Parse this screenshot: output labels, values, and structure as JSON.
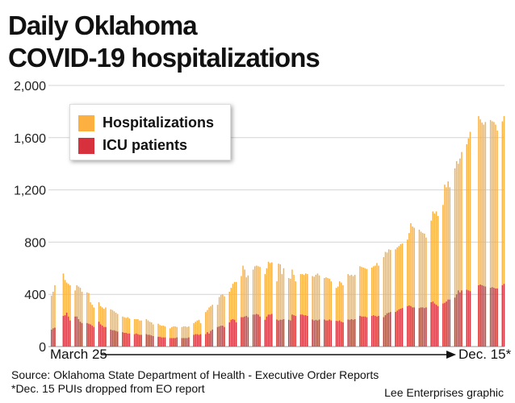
{
  "title_line1": "Daily Oklahoma",
  "title_line2": "COVID-19 hospitalizations",
  "source": "Source: Oklahoma State Department of Health - Executive Order Reports",
  "footnote": "*Dec. 15 PUIs dropped from EO report",
  "credit": "Lee Enterprises graphic",
  "chart_data": {
    "type": "bar",
    "title": "Daily Oklahoma COVID-19 hospitalizations",
    "x_start_label": "March 25",
    "x_end_label": "Dec. 15*",
    "ylim": [
      0,
      2000
    ],
    "y_ticks": [
      0,
      400,
      800,
      1200,
      1600,
      2000
    ],
    "y_tick_labels": [
      "0",
      "400",
      "800",
      "1,200",
      "1,600",
      "2,000"
    ],
    "grid": true,
    "legend_placement": "top-left",
    "overlay": true,
    "colors": {
      "Hospitalizations": "#FBB040",
      "ICU patients": "#D7313E"
    },
    "series_names": [
      "Hospitalizations",
      "ICU patients"
    ],
    "weekly_groups": [
      {
        "hosp": [
          390,
          420,
          470
        ],
        "icu": [
          130,
          140,
          145
        ]
      },
      {
        "hosp": [
          560,
          510,
          490,
          480,
          470
        ],
        "icu": [
          235,
          240,
          260,
          230,
          200
        ]
      },
      {
        "hosp": [
          430,
          470,
          460,
          450,
          420
        ],
        "icu": [
          230,
          230,
          210,
          190,
          180
        ]
      },
      {
        "hosp": [
          415,
          410,
          340,
          320,
          300
        ],
        "icu": [
          180,
          175,
          170,
          160,
          150
        ]
      },
      {
        "hosp": [
          340,
          310,
          300,
          290,
          300
        ],
        "icu": [
          190,
          170,
          160,
          150,
          150
        ]
      },
      {
        "hosp": [
          285,
          280,
          270,
          260,
          250
        ],
        "icu": [
          130,
          125,
          125,
          120,
          115
        ]
      },
      {
        "hosp": [
          230,
          225,
          220,
          225,
          215
        ],
        "icu": [
          110,
          105,
          105,
          100,
          100
        ]
      },
      {
        "hosp": [
          210,
          210,
          210,
          200,
          200
        ],
        "icu": [
          95,
          100,
          95,
          90,
          90
        ]
      },
      {
        "hosp": [
          210,
          200,
          190,
          185,
          170
        ],
        "icu": [
          95,
          90,
          90,
          85,
          80
        ]
      },
      {
        "hosp": [
          175,
          165,
          160,
          160,
          155
        ],
        "icu": [
          75,
          75,
          70,
          70,
          70
        ]
      },
      {
        "hosp": [
          140,
          150,
          155,
          155,
          150
        ],
        "icu": [
          65,
          65,
          65,
          65,
          70
        ]
      },
      {
        "hosp": [
          150,
          155,
          155,
          150,
          155
        ],
        "icu": [
          65,
          65,
          65,
          65,
          70
        ]
      },
      {
        "hosp": [
          180,
          190,
          200,
          205,
          180
        ],
        "icu": [
          90,
          95,
          95,
          90,
          95
        ]
      },
      {
        "hosp": [
          265,
          280,
          300,
          310,
          320
        ],
        "icu": [
          95,
          110,
          100,
          120,
          130
        ]
      },
      {
        "hosp": [
          320,
          380,
          395,
          400,
          385
        ],
        "icu": [
          150,
          155,
          160,
          160,
          150
        ]
      },
      {
        "hosp": [
          420,
          450,
          480,
          495,
          495
        ],
        "icu": [
          185,
          205,
          210,
          205,
          185
        ]
      },
      {
        "hosp": [
          540,
          620,
          590,
          530,
          545
        ],
        "icu": [
          225,
          225,
          230,
          235,
          225
        ]
      },
      {
        "hosp": [
          590,
          615,
          620,
          615,
          610
        ],
        "icu": [
          245,
          245,
          250,
          245,
          230
        ]
      },
      {
        "hosp": [
          555,
          600,
          650,
          640,
          645
        ],
        "icu": [
          205,
          230,
          245,
          245,
          250
        ]
      },
      {
        "hosp": [
          500,
          635,
          630,
          555,
          600
        ],
        "icu": [
          207,
          200,
          205,
          205,
          210
        ]
      },
      {
        "hosp": [
          525,
          520,
          590,
          550,
          500
        ],
        "icu": [
          205,
          200,
          245,
          240,
          235
        ]
      },
      {
        "hosp": [
          555,
          555,
          550,
          560,
          555
        ],
        "icu": [
          245,
          245,
          240,
          240,
          235
        ]
      },
      {
        "hosp": [
          540,
          535,
          550,
          560,
          545
        ],
        "icu": [
          207,
          200,
          205,
          200,
          207
        ]
      },
      {
        "hosp": [
          525,
          530,
          525,
          520,
          500
        ],
        "icu": [
          207,
          200,
          200,
          207,
          200
        ]
      },
      {
        "hosp": [
          450,
          460,
          500,
          490,
          470
        ],
        "icu": [
          197,
          195,
          200,
          190,
          185
        ]
      },
      {
        "hosp": [
          555,
          545,
          550,
          540,
          550
        ],
        "icu": [
          207,
          205,
          210,
          205,
          210
        ]
      },
      {
        "hosp": [
          615,
          610,
          605,
          600,
          595
        ],
        "icu": [
          235,
          230,
          230,
          230,
          225
        ]
      },
      {
        "hosp": [
          605,
          615,
          620,
          640,
          620
        ],
        "icu": [
          235,
          240,
          235,
          230,
          235
        ]
      },
      {
        "hosp": [
          685,
          725,
          720,
          745,
          740
        ],
        "icu": [
          225,
          240,
          255,
          260,
          265
        ]
      },
      {
        "hosp": [
          745,
          760,
          770,
          785,
          790
        ],
        "icu": [
          265,
          275,
          285,
          290,
          295
        ]
      },
      {
        "hosp": [
          820,
          870,
          945,
          920,
          910
        ],
        "icu": [
          310,
          315,
          310,
          300,
          300
        ]
      },
      {
        "hosp": [
          895,
          880,
          870,
          865,
          835
        ],
        "icu": [
          295,
          300,
          300,
          295,
          300
        ]
      },
      {
        "hosp": [
          965,
          1035,
          1020,
          1035,
          1000
        ],
        "icu": [
          340,
          345,
          330,
          320,
          310
        ]
      },
      {
        "hosp": [
          1085,
          1240,
          1220,
          1265,
          1220
        ],
        "icu": [
          330,
          335,
          345,
          360,
          360
        ]
      },
      {
        "hosp": [
          1365,
          1420,
          1400,
          1440,
          1490
        ],
        "icu": [
          375,
          400,
          430,
          415,
          430
        ]
      },
      {
        "hosp": [
          1550,
          1595,
          1645
        ],
        "icu": [
          435,
          430,
          425
        ]
      },
      {
        "hosp": [
          1765,
          1740,
          1715,
          1700,
          1720
        ],
        "icu": [
          470,
          475,
          470,
          465,
          460
        ]
      },
      {
        "hosp": [
          1735,
          1725,
          1720,
          1700,
          1655
        ],
        "icu": [
          450,
          455,
          450,
          445,
          445
        ]
      },
      {
        "hosp": [
          1725,
          1765
        ],
        "icu": [
          470,
          480
        ]
      }
    ]
  }
}
